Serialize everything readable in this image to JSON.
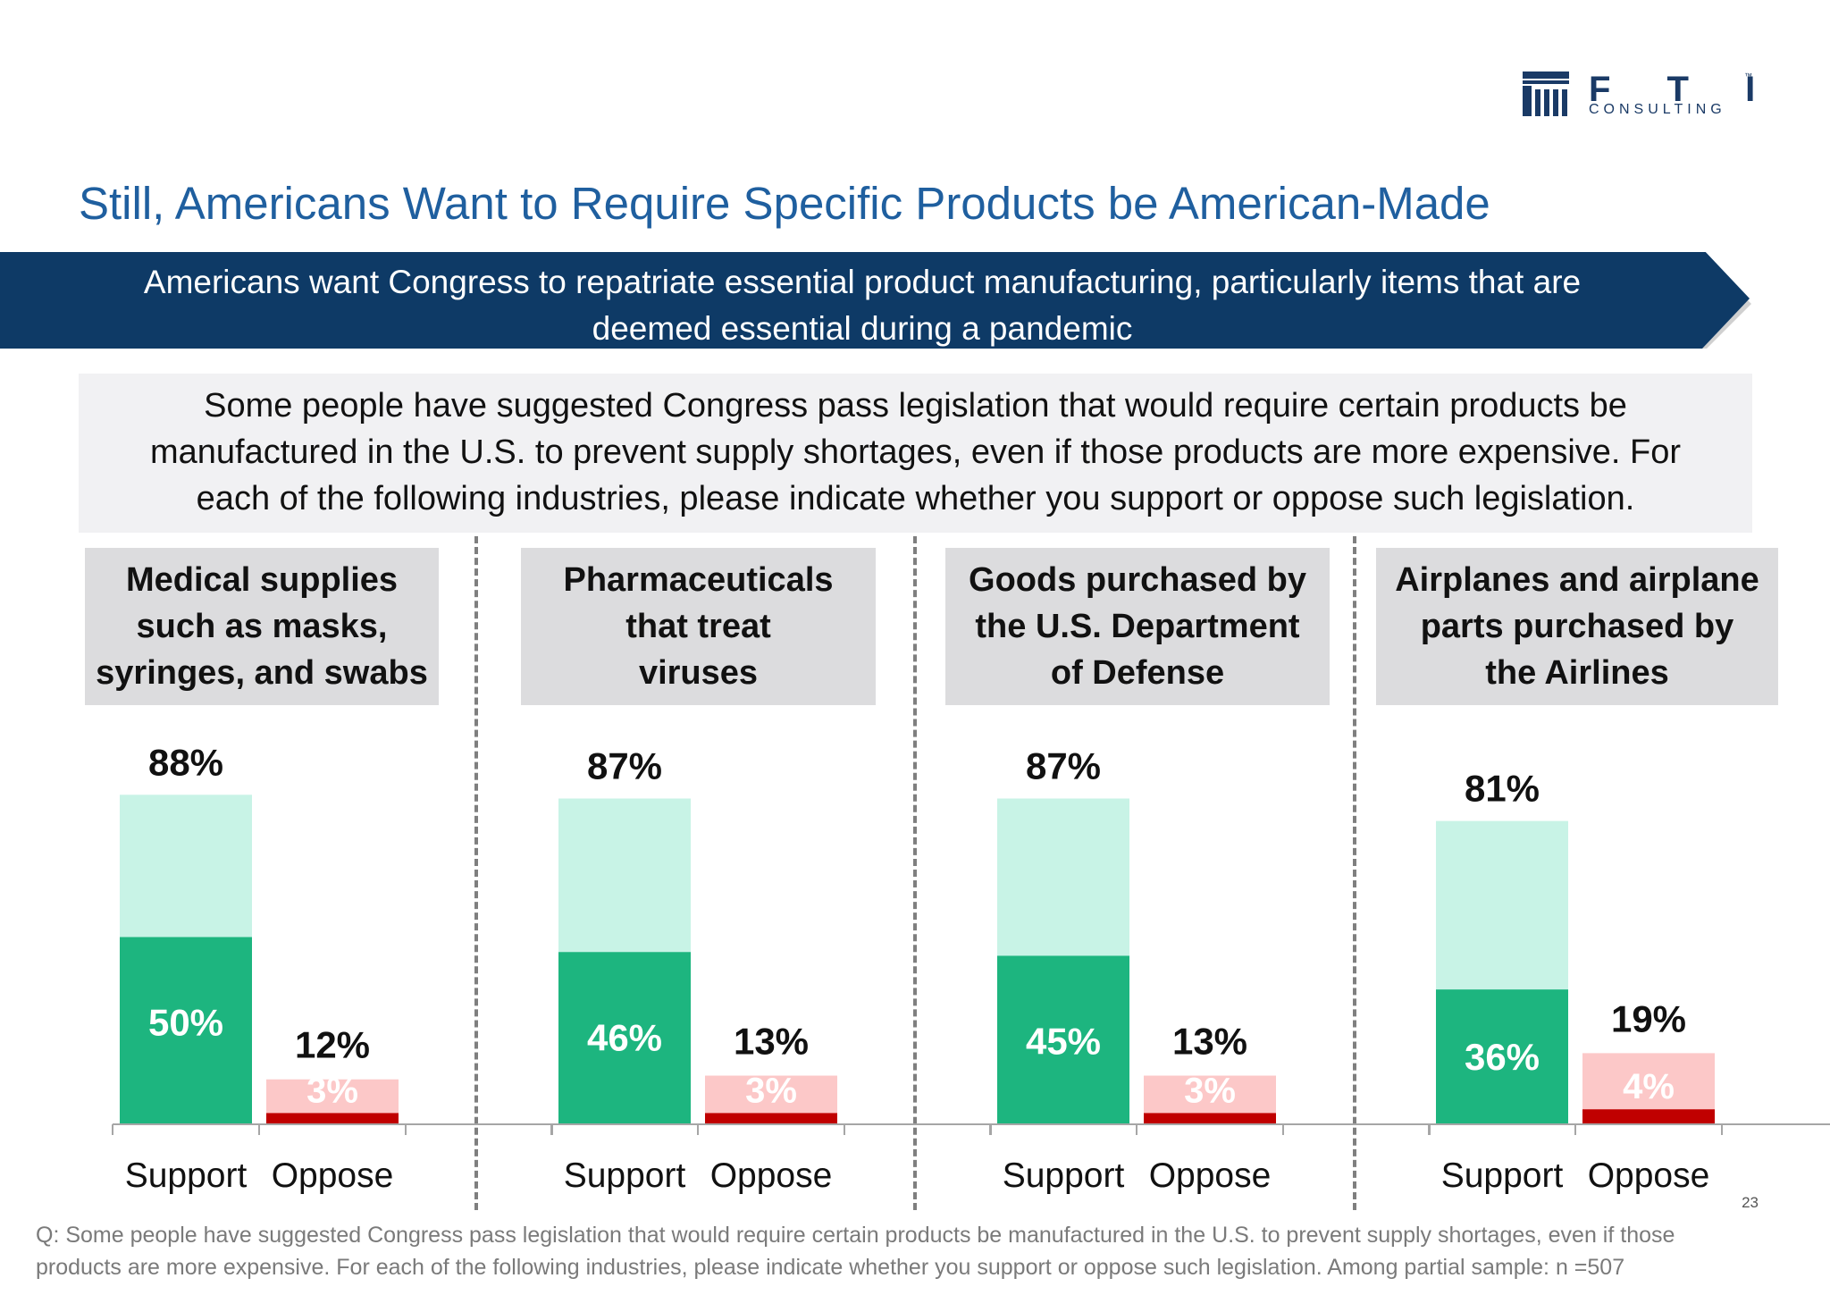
{
  "logo": {
    "brand": "F T I",
    "tagline": "CONSULTING",
    "tm": "™"
  },
  "title": "Still, Americans Want to Require Specific Products be American-Made",
  "banner": {
    "line1": "Americans want Congress to repatriate essential product manufacturing, particularly items that are",
    "line2": "deemed essential during a pandemic"
  },
  "question": {
    "line1": "Some people have suggested Congress pass legislation that would require certain products be",
    "line2": "manufactured in the U.S. to prevent supply shortages, even if those products are more expensive.  For",
    "line3": "each of the following industries, please indicate whether you support or oppose such legislation."
  },
  "categories": [
    {
      "lines": [
        "Medical supplies",
        "such as masks,",
        "syringes, and swabs"
      ]
    },
    {
      "lines": [
        "Pharmaceuticals",
        "that treat",
        "viruses"
      ]
    },
    {
      "lines": [
        "Goods purchased by",
        "the U.S. Department",
        "of Defense"
      ]
    },
    {
      "lines": [
        "Airplanes and airplane",
        "parts purchased by",
        "the Airlines"
      ]
    }
  ],
  "chart_data": {
    "type": "bar",
    "stacked": true,
    "categories": [
      "Medical supplies such as masks, syringes, and swabs",
      "Pharmaceuticals that treat viruses",
      "Goods purchased by the U.S. Department of Defense",
      "Airplanes and airplane parts purchased by the Airlines"
    ],
    "x_labels": [
      "Support",
      "Oppose"
    ],
    "support_total": [
      88,
      87,
      87,
      81
    ],
    "support_strong": [
      50,
      46,
      45,
      36
    ],
    "oppose_total": [
      12,
      13,
      13,
      19
    ],
    "oppose_strong": [
      3,
      3,
      3,
      4
    ],
    "support_total_labels": [
      "88%",
      "87%",
      "87%",
      "81%"
    ],
    "support_strong_labels": [
      "50%",
      "46%",
      "45%",
      "36%"
    ],
    "oppose_total_labels": [
      "12%",
      "13%",
      "13%",
      "19%"
    ],
    "oppose_strong_labels": [
      "3%",
      "3%",
      "3%",
      "4%"
    ],
    "colors": {
      "support_strong": "#1db57f",
      "support_total": "#c8f3e6",
      "oppose_strong": "#c00000",
      "oppose_total": "#fcc8c8",
      "axis": "#a6a6a6"
    }
  },
  "footnote": {
    "line1": "Q: Some people have suggested Congress pass legislation that would require certain products be manufactured in the U.S. to prevent supply shortages, even if those",
    "line2": "products are more expensive.  For each of the following industries, please indicate whether you support or oppose such legislation. Among partial sample: n =507"
  },
  "page_number": "23"
}
